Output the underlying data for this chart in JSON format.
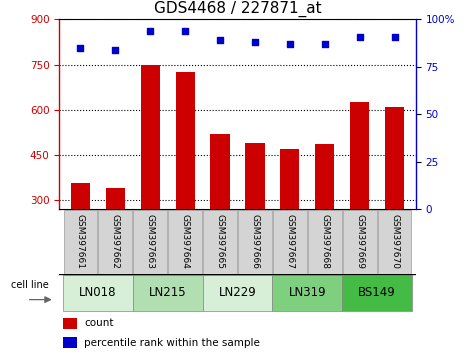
{
  "title": "GDS4468 / 227871_at",
  "samples": [
    "GSM397661",
    "GSM397662",
    "GSM397663",
    "GSM397664",
    "GSM397665",
    "GSM397666",
    "GSM397667",
    "GSM397668",
    "GSM397669",
    "GSM397670"
  ],
  "counts": [
    355,
    340,
    750,
    725,
    520,
    490,
    470,
    485,
    625,
    610
  ],
  "percentile_ranks": [
    85,
    84,
    94,
    94,
    89,
    88,
    87,
    87,
    91,
    91
  ],
  "cell_lines": [
    {
      "label": "LN018",
      "start": 0,
      "end": 2,
      "color": "#d6efd6"
    },
    {
      "label": "LN215",
      "start": 2,
      "end": 4,
      "color": "#b2dfb2"
    },
    {
      "label": "LN229",
      "start": 4,
      "end": 6,
      "color": "#d6efd6"
    },
    {
      "label": "LN319",
      "start": 6,
      "end": 8,
      "color": "#7ecf7e"
    },
    {
      "label": "BS149",
      "start": 8,
      "end": 10,
      "color": "#44bb44"
    }
  ],
  "ylim_left": [
    270,
    900
  ],
  "ylim_right": [
    0,
    100
  ],
  "yticks_left": [
    300,
    450,
    600,
    750,
    900
  ],
  "yticks_right": [
    0,
    25,
    50,
    75,
    100
  ],
  "bar_color": "#cc0000",
  "scatter_color": "#0000cc",
  "legend_count_label": "count",
  "legend_pct_label": "percentile rank within the sample",
  "cell_line_label": "cell line",
  "background_color": "#ffffff",
  "bar_width": 0.55,
  "title_fontsize": 11,
  "tick_fontsize": 7.5,
  "sample_fontsize": 6.5,
  "cell_line_fontsize": 8.5
}
